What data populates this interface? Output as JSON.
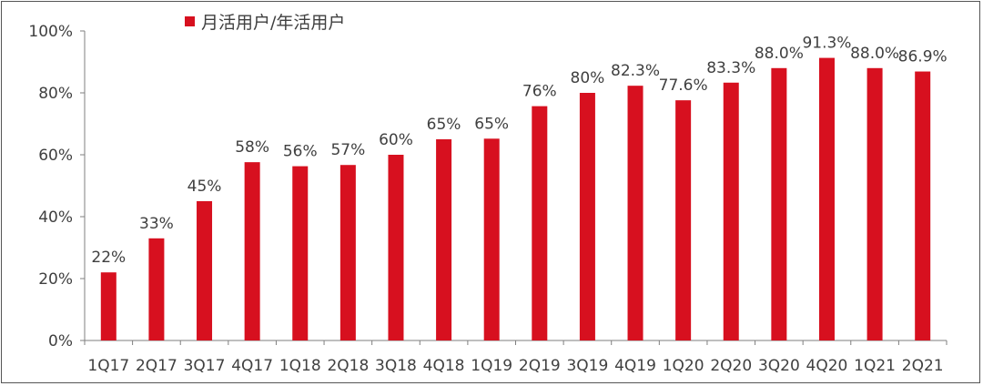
{
  "chart_data": {
    "type": "bar",
    "categories": [
      "1Q17",
      "2Q17",
      "3Q17",
      "4Q17",
      "1Q18",
      "2Q18",
      "3Q18",
      "4Q18",
      "1Q19",
      "2Q19",
      "3Q19",
      "4Q19",
      "1Q20",
      "2Q20",
      "3Q20",
      "4Q20",
      "1Q21",
      "2Q21"
    ],
    "series": [
      {
        "name": "月活用户/年活用户",
        "values": [
          22,
          33,
          45,
          57.6,
          56.3,
          56.7,
          60,
          65,
          65.2,
          75.7,
          80,
          82.3,
          77.6,
          83.3,
          88.0,
          91.3,
          88.0,
          86.9
        ],
        "labels": [
          "22%",
          "33%",
          "45%",
          "58%",
          "56%",
          "57%",
          "60%",
          "65%",
          "65%",
          "76%",
          "80%",
          "82.3%",
          "77.6%",
          "83.3%",
          "88.0%",
          "91.3%",
          "88.0%",
          "86.9%"
        ]
      }
    ],
    "ylim": [
      0,
      100
    ],
    "yticks": [
      "0%",
      "20%",
      "40%",
      "60%",
      "80%",
      "100%"
    ],
    "ytick_values": [
      0,
      20,
      40,
      60,
      80,
      100
    ],
    "grid": false,
    "legend_position": "top-left",
    "colors": {
      "bar": "#d7101f",
      "axis": "#7f7f7f",
      "text": "#404040"
    }
  }
}
